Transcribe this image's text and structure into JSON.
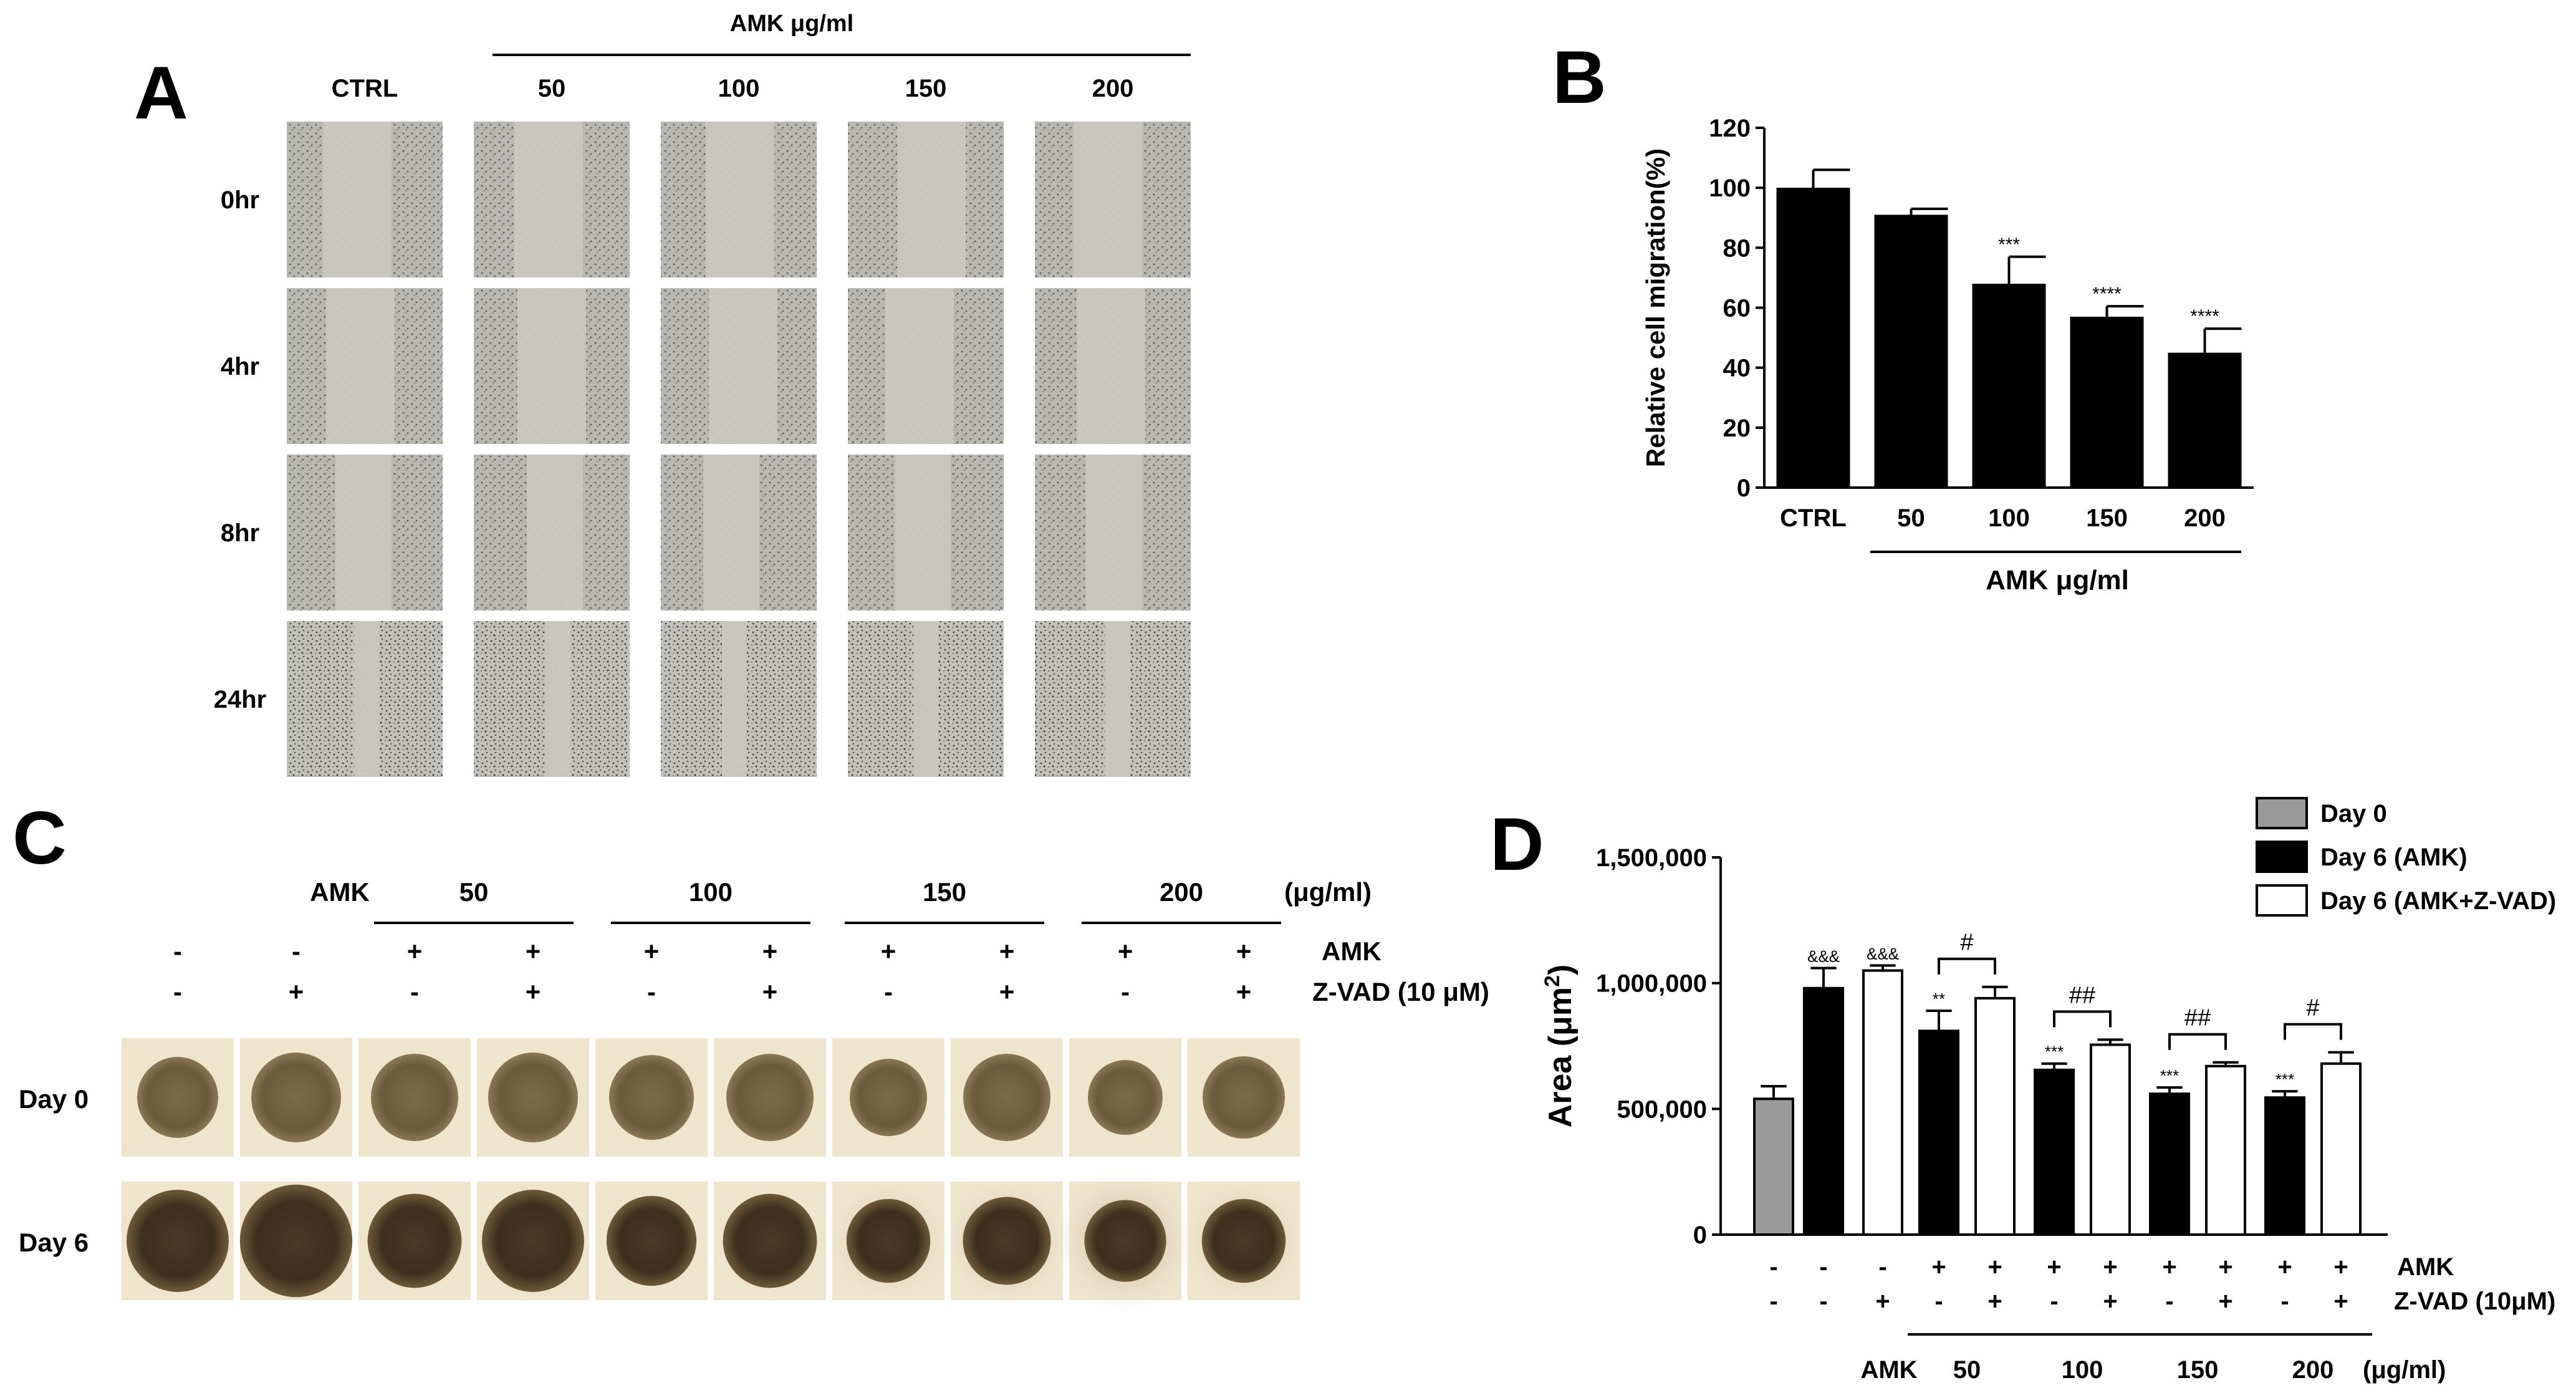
{
  "panel_a": {
    "letter": "A",
    "group_label": "AMK μg/ml",
    "columns": [
      "CTRL",
      "50",
      "100",
      "150",
      "200"
    ],
    "rows": [
      "0hr",
      "4hr",
      "8hr",
      "24hr"
    ]
  },
  "panel_b": {
    "letter": "B",
    "group_label": "AMK μg/ml"
  },
  "panel_c": {
    "letter": "C",
    "amk_label": "AMK",
    "dose_groups": [
      "50",
      "100",
      "150",
      "200"
    ],
    "unit_label": "(μg/ml)",
    "amk_row_label": "AMK",
    "zvad_row_label": "Z-VAD (10 μM)",
    "amk_signs": [
      "-",
      "-",
      "+",
      "+",
      "+",
      "+",
      "+",
      "+",
      "+",
      "+"
    ],
    "zvad_signs": [
      "-",
      "+",
      "-",
      "+",
      "-",
      "+",
      "-",
      "+",
      "-",
      "+"
    ],
    "rows": [
      "Day 0",
      "Day 6"
    ]
  },
  "panel_d": {
    "letter": "D",
    "legend": [
      "Day 0",
      "Day 6 (AMK)",
      "Day 6 (AMK+Z-VAD)"
    ],
    "amk_row_label": "AMK",
    "zvad_row_label": "Z-VAD (10μM)",
    "amk_signs": [
      "-",
      "-",
      "-",
      "+",
      "+",
      "+",
      "+",
      "+",
      "+",
      "+",
      "+"
    ],
    "zvad_signs": [
      "-",
      "-",
      "+",
      "-",
      "+",
      "-",
      "+",
      "-",
      "+",
      "-",
      "+"
    ],
    "dose_prefix": "AMK",
    "dose_groups": [
      "50",
      "100",
      "150",
      "200"
    ],
    "unit_label": "(μg/ml)",
    "pair_marks": [
      "#",
      "##",
      "##",
      "#"
    ]
  },
  "colors": {
    "day0_bar": "#9a9a9a",
    "amk_bar": "#000000",
    "zvad_bar": "#ffffff",
    "micrograph": "#c8c6c0",
    "spheroid_bg": "#efe4cc",
    "spheroid": "#6b5a3c"
  },
  "chart_data": [
    {
      "type": "bar",
      "title": "",
      "xlabel": "AMK μg/ml",
      "ylabel": "Relative cell migration(%)",
      "categories": [
        "CTRL",
        "50",
        "100",
        "150",
        "200"
      ],
      "values": [
        100,
        91,
        68,
        57,
        45
      ],
      "errors": [
        6,
        2,
        9,
        3.5,
        8
      ],
      "significance": [
        "",
        "",
        "***",
        "****",
        "****"
      ],
      "ylim": [
        0,
        120
      ],
      "yticks": [
        0,
        20,
        40,
        60,
        80,
        100,
        120
      ]
    },
    {
      "type": "bar",
      "title": "",
      "xlabel": "",
      "ylabel": "Area (μm2)",
      "ylim": [
        0,
        1500000
      ],
      "yticks": [
        0,
        500000,
        1000000,
        1500000
      ],
      "ytick_labels": [
        "0",
        "500,000",
        "1,000,000",
        "1,500,000"
      ],
      "bars": [
        {
          "series": "Day 0",
          "value": 540000,
          "error": 50000,
          "mark": ""
        },
        {
          "series": "Day 6 (AMK)",
          "value": 980000,
          "error": 80000,
          "mark": "&&&"
        },
        {
          "series": "Day 6 (AMK+Z-VAD)",
          "value": 1050000,
          "error": 20000,
          "mark": "&&&"
        },
        {
          "series": "Day 6 (AMK)",
          "value": 810000,
          "error": 80000,
          "mark": "**"
        },
        {
          "series": "Day 6 (AMK+Z-VAD)",
          "value": 940000,
          "error": 45000,
          "mark": ""
        },
        {
          "series": "Day 6 (AMK)",
          "value": 655000,
          "error": 25000,
          "mark": "***"
        },
        {
          "series": "Day 6 (AMK+Z-VAD)",
          "value": 755000,
          "error": 20000,
          "mark": ""
        },
        {
          "series": "Day 6 (AMK)",
          "value": 560000,
          "error": 25000,
          "mark": "***"
        },
        {
          "series": "Day 6 (AMK+Z-VAD)",
          "value": 670000,
          "error": 15000,
          "mark": ""
        },
        {
          "series": "Day 6 (AMK)",
          "value": 545000,
          "error": 25000,
          "mark": "***"
        },
        {
          "series": "Day 6 (AMK+Z-VAD)",
          "value": 680000,
          "error": 45000,
          "mark": ""
        }
      ]
    }
  ]
}
